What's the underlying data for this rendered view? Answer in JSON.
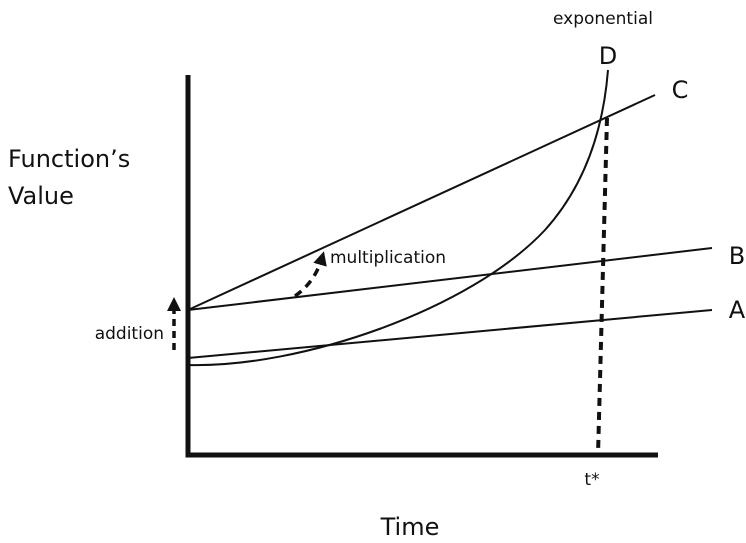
{
  "y_axis_label": [
    "Function’s",
    "Value"
  ],
  "x_axis_label": "Time",
  "curves": {
    "A": "A",
    "B": "B",
    "C": "C",
    "D": "D"
  },
  "annotations": {
    "exponential": "exponential",
    "multiplication": "multiplication",
    "addition": "addition",
    "t_star": "t*"
  }
}
